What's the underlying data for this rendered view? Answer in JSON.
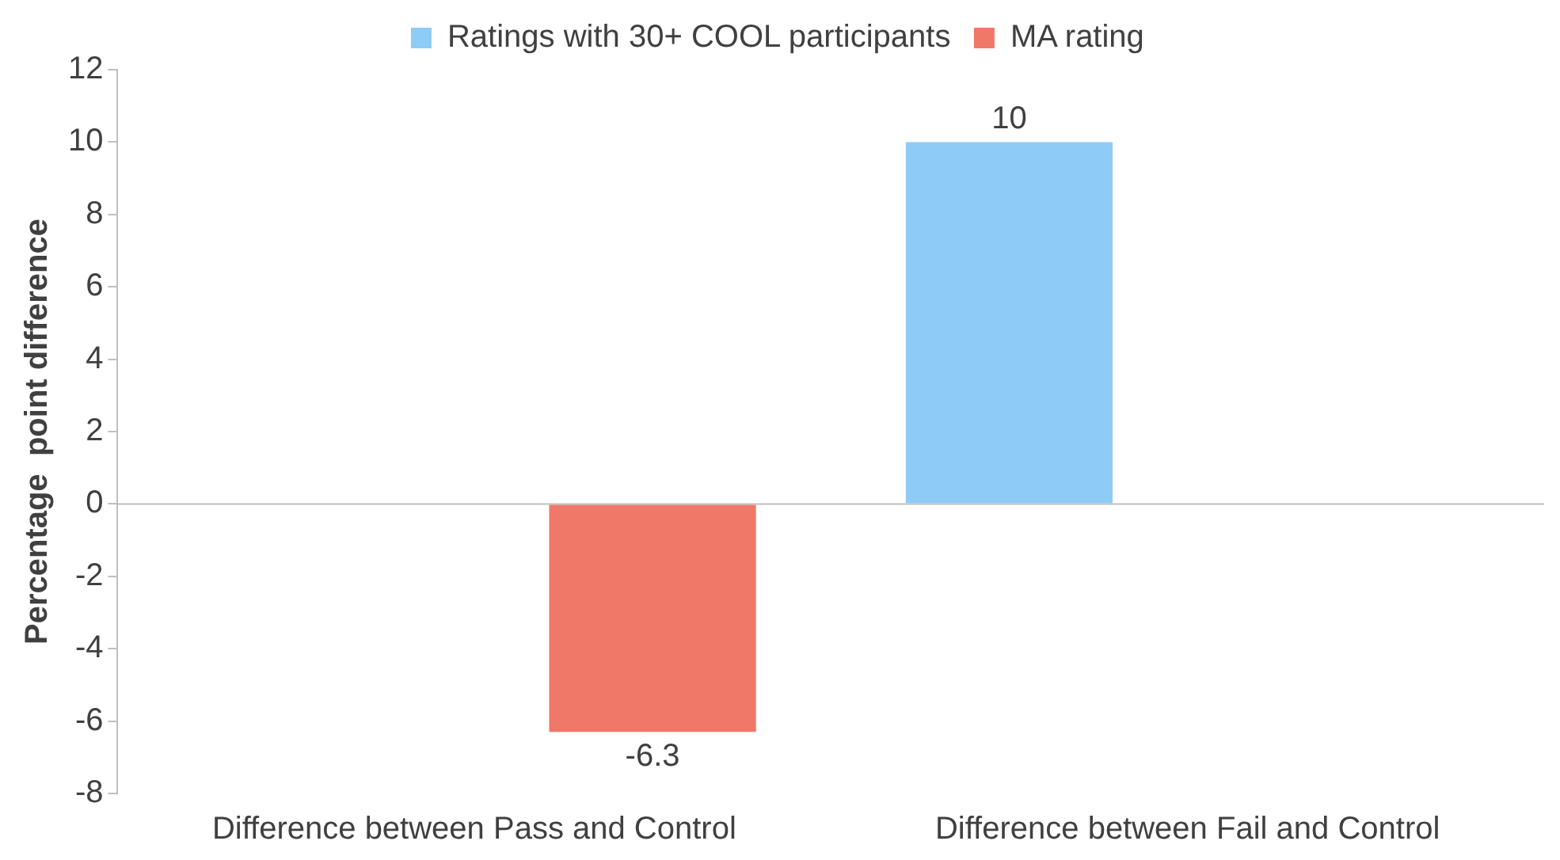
{
  "chart_data": {
    "type": "bar",
    "categories": [
      "Difference between Pass and Control",
      "Difference between Fail and Control"
    ],
    "series": [
      {
        "name": "Ratings with 30+ COOL participants",
        "color": "#8ecbf5",
        "values": [
          null,
          10
        ]
      },
      {
        "name": "MA rating",
        "color": "#f07868",
        "values": [
          -6.3,
          null
        ]
      }
    ],
    "ylabel": "Percentage  point difference",
    "ylim": [
      -8,
      12
    ],
    "yticks": [
      -8,
      -6,
      -4,
      -2,
      0,
      2,
      4,
      6,
      8,
      10,
      12
    ],
    "ref_lines": [
      {
        "axis": "y",
        "value": 0,
        "color": "#bfbfbf"
      }
    ],
    "data_labels": true,
    "legend": "top",
    "grid": false
  }
}
